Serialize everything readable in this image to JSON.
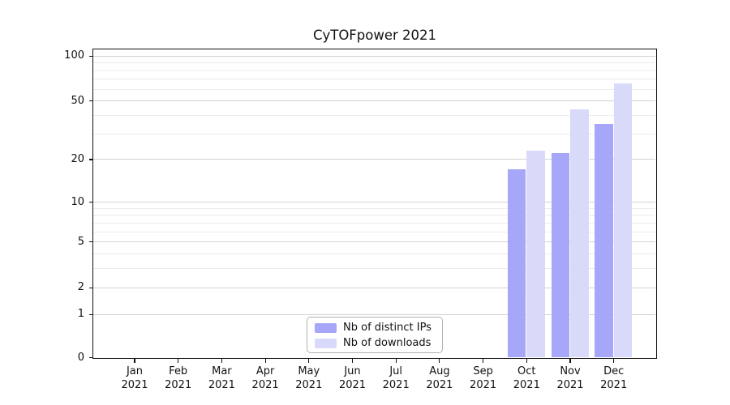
{
  "chart_data": {
    "type": "bar",
    "title": "CyTOFpower 2021",
    "x": [
      {
        "month": "Jan",
        "year": "2021"
      },
      {
        "month": "Feb",
        "year": "2021"
      },
      {
        "month": "Mar",
        "year": "2021"
      },
      {
        "month": "Apr",
        "year": "2021"
      },
      {
        "month": "May",
        "year": "2021"
      },
      {
        "month": "Jun",
        "year": "2021"
      },
      {
        "month": "Jul",
        "year": "2021"
      },
      {
        "month": "Aug",
        "year": "2021"
      },
      {
        "month": "Sep",
        "year": "2021"
      },
      {
        "month": "Oct",
        "year": "2021"
      },
      {
        "month": "Nov",
        "year": "2021"
      },
      {
        "month": "Dec",
        "year": "2021"
      }
    ],
    "series": [
      {
        "name": "Nb of distinct IPs",
        "color": "#a7a7f9",
        "values": [
          0,
          0,
          0,
          0,
          0,
          0,
          0,
          0,
          0,
          17,
          22,
          35
        ]
      },
      {
        "name": "Nb of downloads",
        "color": "#d9d9fa",
        "values": [
          0,
          0,
          0,
          0,
          0,
          0,
          0,
          0,
          0,
          23,
          44,
          65
        ]
      }
    ],
    "yaxis": {
      "scale": "log1p",
      "major_ticks": [
        0,
        1,
        2,
        5,
        10,
        20,
        50,
        100
      ],
      "minor_ticks": [
        3,
        4,
        6,
        7,
        8,
        9,
        30,
        40,
        60,
        70,
        80,
        90
      ],
      "top_value_approx": 113
    },
    "legend": {
      "position": "lower center"
    },
    "grid": true,
    "colors": {
      "major_grid": "#d2d2d2",
      "minor_grid": "#ececec",
      "spine": "#111111"
    }
  }
}
